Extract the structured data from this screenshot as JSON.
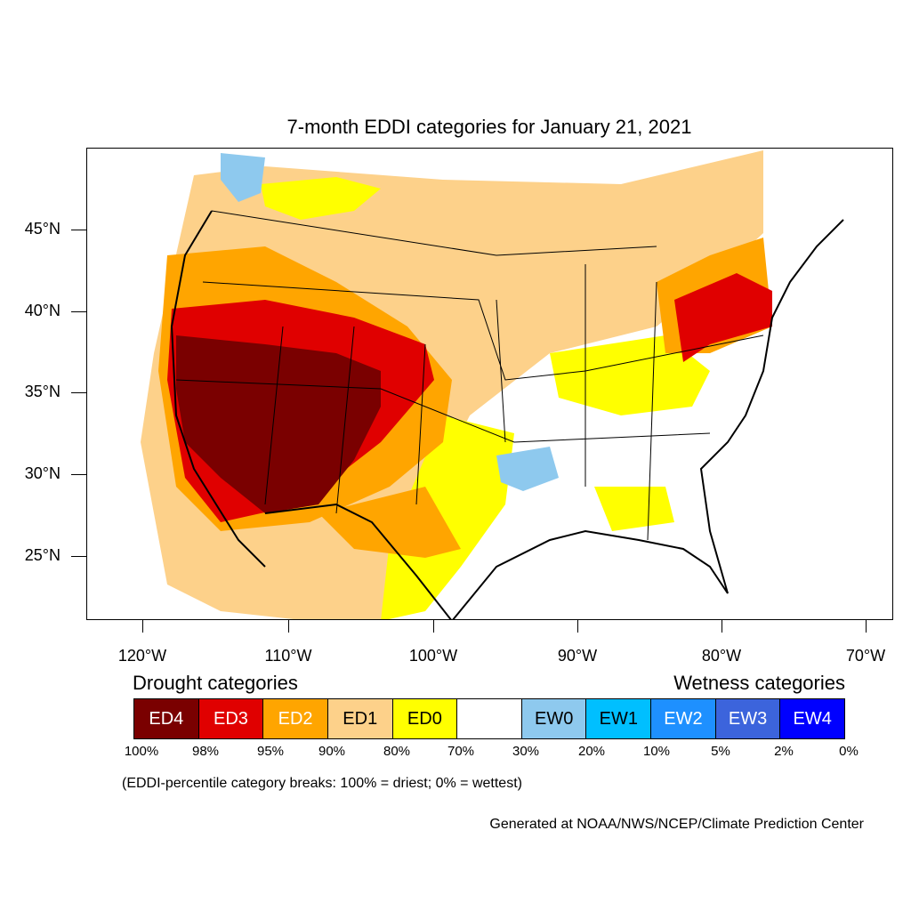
{
  "title": "7-month EDDI categories for January 21, 2021",
  "lat_labels": [
    "45°N",
    "40°N",
    "35°N",
    "30°N",
    "25°N"
  ],
  "lon_labels": [
    "120°W",
    "110°W",
    "100°W",
    "90°W",
    "80°W",
    "70°W"
  ],
  "legend": {
    "drought_heading": "Drought categories",
    "wetness_heading": "Wetness categories",
    "categories": [
      {
        "label": "ED4",
        "color": "#7a0000",
        "text_color": "#ffffff"
      },
      {
        "label": "ED3",
        "color": "#e00000",
        "text_color": "#ffffff"
      },
      {
        "label": "ED2",
        "color": "#ffa500",
        "text_color": "#ffffff"
      },
      {
        "label": "ED1",
        "color": "#fdd18a",
        "text_color": "#000000"
      },
      {
        "label": "ED0",
        "color": "#ffff00",
        "text_color": "#000000"
      },
      {
        "label": "",
        "color": "#ffffff",
        "text_color": "#000000"
      },
      {
        "label": "EW0",
        "color": "#8ec9ee",
        "text_color": "#000000"
      },
      {
        "label": "EW1",
        "color": "#00bfff",
        "text_color": "#000000"
      },
      {
        "label": "EW2",
        "color": "#1e90ff",
        "text_color": "#ffffff"
      },
      {
        "label": "EW3",
        "color": "#3c64dc",
        "text_color": "#ffffff"
      },
      {
        "label": "EW4",
        "color": "#0000ff",
        "text_color": "#ffffff"
      }
    ],
    "percentiles": [
      "100%",
      "98%",
      "95%",
      "90%",
      "80%",
      "70%",
      "30%",
      "20%",
      "10%",
      "5%",
      "2%",
      "0%"
    ]
  },
  "note": "(EDDI-percentile category breaks: 100% = driest; 0% = wettest)",
  "credit": "Generated at NOAA/NWS/NCEP/Climate Prediction Center"
}
